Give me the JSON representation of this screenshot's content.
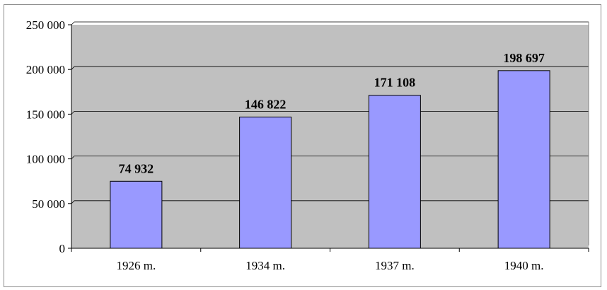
{
  "chart_data": {
    "type": "bar",
    "categories": [
      "1926 m.",
      "1934 m.",
      "1937 m.",
      "1940 m."
    ],
    "values": [
      74932,
      146822,
      171108,
      198697
    ],
    "data_labels": [
      "74 932",
      "146 822",
      "171 108",
      "198 697"
    ],
    "y_ticks": [
      0,
      50000,
      100000,
      150000,
      200000,
      250000
    ],
    "y_tick_labels": [
      "0",
      "50 000",
      "100 000",
      "150 000",
      "200 000",
      "250 000"
    ],
    "ylim": [
      0,
      250000
    ],
    "title": "",
    "xlabel": "",
    "ylabel": "",
    "grid": true,
    "legend": "none",
    "colors": {
      "bar_fill": "#9999ff",
      "bar_stroke": "#000000",
      "plot_background": "#c0c0c0",
      "grid": "#000000"
    }
  }
}
